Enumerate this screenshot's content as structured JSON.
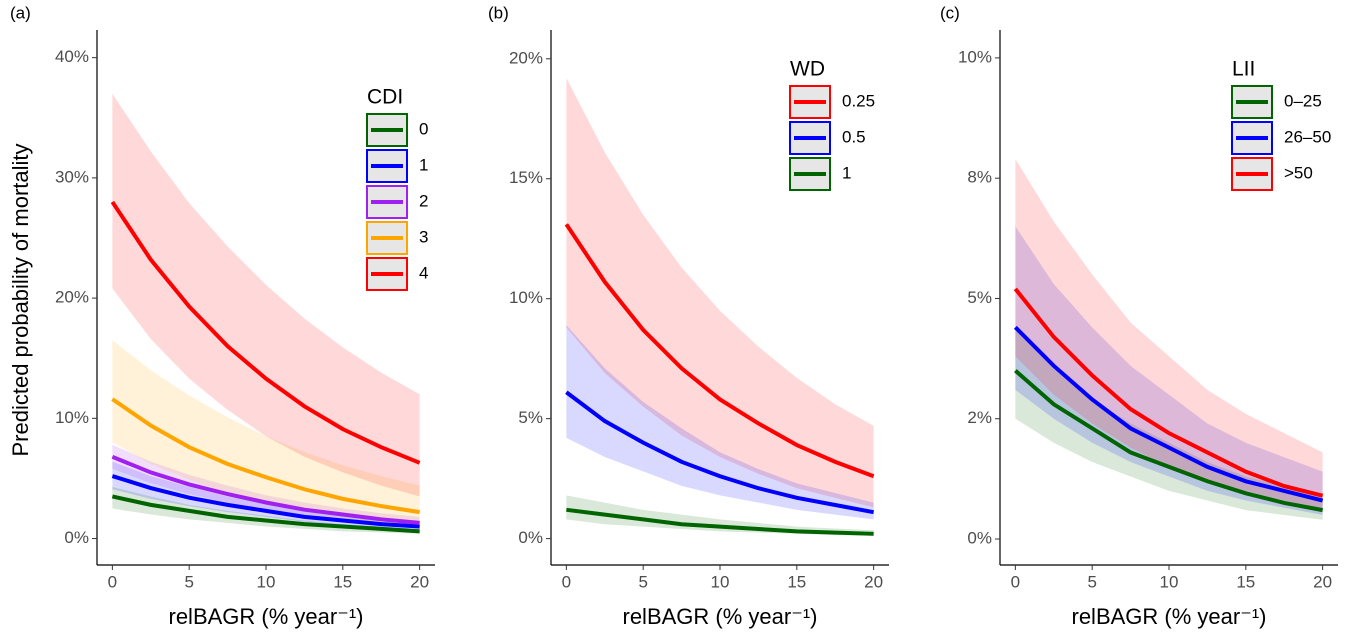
{
  "chart_data": [
    {
      "type": "line",
      "panel_label": "(a)",
      "y_label": "Predicted probability of mortality",
      "x_label": "relBAGR (% year⁻¹)",
      "legend_title": "CDI",
      "x": [
        0,
        2.5,
        5,
        7.5,
        10,
        12.5,
        15,
        17.5,
        20
      ],
      "xlim": [
        -1,
        21
      ],
      "xticks": [
        0,
        5,
        10,
        15,
        20
      ],
      "ylim": [
        -2.2,
        42.3
      ],
      "yticks": [
        {
          "value": 0,
          "label": "0%"
        },
        {
          "value": 10,
          "label": "10%"
        },
        {
          "value": 20,
          "label": "20%"
        },
        {
          "value": 30,
          "label": "30%"
        },
        {
          "value": 40,
          "label": "40%"
        }
      ],
      "series": [
        {
          "name": "0",
          "color": "#006400",
          "values": [
            3.5,
            2.8,
            2.3,
            1.8,
            1.5,
            1.2,
            1.0,
            0.8,
            0.6
          ],
          "lower": [
            2.5,
            2.0,
            1.6,
            1.3,
            1.0,
            0.8,
            0.6,
            0.5,
            0.4
          ],
          "upper": [
            4.3,
            3.5,
            2.8,
            2.3,
            1.9,
            1.5,
            1.2,
            1.0,
            0.8
          ]
        },
        {
          "name": "1",
          "color": "#0000ff",
          "values": [
            5.2,
            4.2,
            3.4,
            2.8,
            2.3,
            1.8,
            1.5,
            1.2,
            1.0
          ],
          "lower": [
            4.1,
            3.3,
            2.7,
            2.2,
            1.8,
            1.4,
            1.1,
            0.9,
            0.7
          ],
          "upper": [
            6.4,
            5.2,
            4.3,
            3.5,
            2.9,
            2.3,
            1.9,
            1.6,
            1.3
          ]
        },
        {
          "name": "2",
          "color": "#a020f0",
          "values": [
            6.8,
            5.5,
            4.5,
            3.7,
            3.0,
            2.4,
            2.0,
            1.6,
            1.3
          ],
          "lower": [
            5.8,
            4.6,
            3.7,
            3.0,
            2.4,
            1.9,
            1.5,
            1.2,
            0.9
          ],
          "upper": [
            7.8,
            6.4,
            5.3,
            4.4,
            3.6,
            3.0,
            2.5,
            2.1,
            1.8
          ]
        },
        {
          "name": "3",
          "color": "#ffa500",
          "values": [
            11.6,
            9.4,
            7.6,
            6.2,
            5.1,
            4.1,
            3.3,
            2.7,
            2.2
          ],
          "lower": [
            8.0,
            6.2,
            4.9,
            3.8,
            2.9,
            2.3,
            1.8,
            1.4,
            1.1
          ],
          "upper": [
            16.5,
            14.0,
            11.9,
            10.1,
            8.5,
            7.2,
            6.1,
            5.2,
            4.4
          ]
        },
        {
          "name": "4",
          "color": "#ff0000",
          "values": [
            28,
            23.2,
            19.3,
            16.0,
            13.3,
            11.0,
            9.1,
            7.6,
            6.3
          ],
          "lower": [
            20.8,
            16.6,
            13.3,
            10.7,
            8.5,
            6.8,
            5.5,
            4.4,
            3.5
          ],
          "upper": [
            37,
            32.2,
            27.9,
            24.3,
            21.1,
            18.3,
            15.9,
            13.8,
            12.0
          ]
        }
      ]
    },
    {
      "type": "line",
      "panel_label": "(b)",
      "x_label": "relBAGR (% year⁻¹)",
      "legend_title": "WD",
      "x": [
        0,
        2.5,
        5,
        7.5,
        10,
        12.5,
        15,
        17.5,
        20
      ],
      "xlim": [
        -1,
        21
      ],
      "xticks": [
        0,
        5,
        10,
        15,
        20
      ],
      "ylim": [
        -1.1,
        21.2
      ],
      "yticks": [
        {
          "value": 0,
          "label": "0%"
        },
        {
          "value": 5,
          "label": "5%"
        },
        {
          "value": 10,
          "label": "10%"
        },
        {
          "value": 15,
          "label": "15%"
        },
        {
          "value": 20,
          "label": "20%"
        }
      ],
      "series": [
        {
          "name": "0.25",
          "color": "#ff0000",
          "values": [
            13.1,
            10.7,
            8.7,
            7.1,
            5.8,
            4.8,
            3.9,
            3.2,
            2.6
          ],
          "lower": [
            8.8,
            6.9,
            5.5,
            4.3,
            3.4,
            2.7,
            2.1,
            1.7,
            1.3
          ],
          "upper": [
            19.2,
            16.1,
            13.5,
            11.3,
            9.5,
            8.0,
            6.7,
            5.6,
            4.7
          ]
        },
        {
          "name": "0.5",
          "color": "#0000ff",
          "values": [
            6.1,
            4.9,
            4.0,
            3.2,
            2.6,
            2.1,
            1.7,
            1.4,
            1.1
          ],
          "lower": [
            4.2,
            3.4,
            2.8,
            2.2,
            1.8,
            1.5,
            1.2,
            1.0,
            0.8
          ],
          "upper": [
            8.9,
            7.1,
            5.7,
            4.6,
            3.6,
            2.9,
            2.3,
            1.9,
            1.5
          ]
        },
        {
          "name": "1",
          "color": "#006400",
          "values": [
            1.2,
            1.0,
            0.8,
            0.6,
            0.5,
            0.4,
            0.3,
            0.25,
            0.2
          ],
          "lower": [
            0.8,
            0.6,
            0.5,
            0.4,
            0.3,
            0.25,
            0.2,
            0.15,
            0.12
          ],
          "upper": [
            1.8,
            1.5,
            1.2,
            1.0,
            0.8,
            0.65,
            0.5,
            0.42,
            0.35
          ]
        }
      ]
    },
    {
      "type": "line",
      "panel_label": "(c)",
      "x_label": "relBAGR (% year⁻¹)",
      "legend_title": "LII",
      "x": [
        0,
        2.5,
        5,
        7.5,
        10,
        12.5,
        15,
        17.5,
        20
      ],
      "xlim": [
        -1,
        21
      ],
      "xticks": [
        0,
        5,
        10,
        15,
        20
      ],
      "ylim": [
        -0.54,
        10.58
      ],
      "yticks": [
        {
          "value": 0,
          "label": "0%"
        },
        {
          "value": 2.5,
          "label": "2%"
        },
        {
          "value": 5,
          "label": "5%"
        },
        {
          "value": 7.5,
          "label": "8%"
        },
        {
          "value": 10,
          "label": "10%"
        }
      ],
      "series": [
        {
          "name": "0–25",
          "color": "#006400",
          "values": [
            3.5,
            2.8,
            2.3,
            1.8,
            1.5,
            1.2,
            0.95,
            0.75,
            0.6
          ],
          "lower": [
            2.5,
            2.0,
            1.6,
            1.3,
            1.0,
            0.8,
            0.6,
            0.5,
            0.4
          ],
          "upper": [
            4.4,
            3.6,
            2.9,
            2.4,
            2.0,
            1.6,
            1.3,
            1.1,
            0.9
          ]
        },
        {
          "name": "26–50",
          "color": "#0000ff",
          "values": [
            4.4,
            3.6,
            2.9,
            2.3,
            1.9,
            1.5,
            1.2,
            1.0,
            0.8
          ],
          "lower": [
            3.1,
            2.5,
            2.0,
            1.6,
            1.3,
            1.0,
            0.8,
            0.65,
            0.5
          ],
          "upper": [
            6.5,
            5.3,
            4.4,
            3.6,
            3.0,
            2.4,
            2.0,
            1.7,
            1.4
          ]
        },
        {
          "name": ">50",
          "color": "#ff0000",
          "values": [
            5.2,
            4.2,
            3.4,
            2.7,
            2.2,
            1.8,
            1.4,
            1.1,
            0.9
          ],
          "lower": [
            3.8,
            3.0,
            2.4,
            1.9,
            1.5,
            1.2,
            1.0,
            0.8,
            0.6
          ],
          "upper": [
            7.9,
            6.6,
            5.5,
            4.5,
            3.8,
            3.1,
            2.6,
            2.2,
            1.8
          ]
        }
      ]
    }
  ]
}
